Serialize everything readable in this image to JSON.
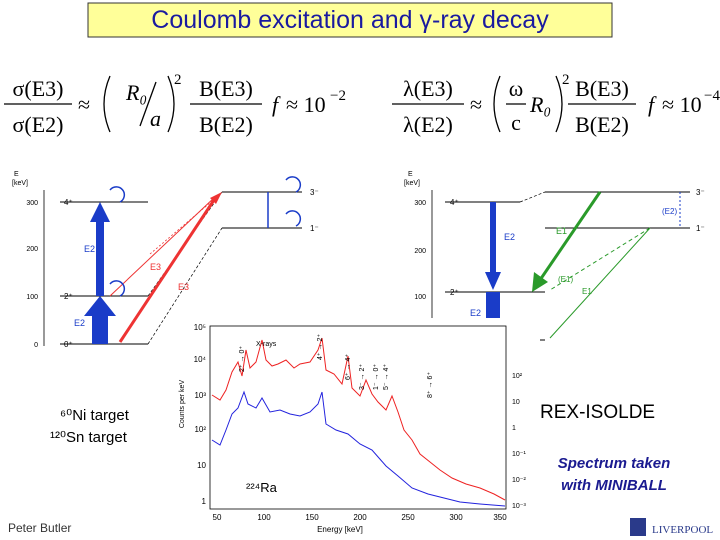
{
  "title": "Coulomb excitation and γ-ray decay",
  "formulas": {
    "left": {
      "num": "σ(E3)",
      "den": "σ(E2)",
      "approx": "≈",
      "inner_num": "R₀",
      "inner_den": "a",
      "power": "2",
      "b_num": "B(E3)",
      "b_den": "B(E2)",
      "f": "f",
      "approx_value": "≈ 10",
      "exponent": "−2"
    },
    "right": {
      "num": "λ(E3)",
      "den": "λ(E2)",
      "approx": "≈",
      "inner_num": "ω",
      "inner_den": "c",
      "inner_factor": "R₀",
      "power": "2",
      "b_num": "B(E3)",
      "b_den": "B(E2)",
      "f": "f",
      "approx_value": "≈ 10",
      "exponent": "−4"
    }
  },
  "left_diagram": {
    "axis_title": [
      "E",
      "[keV]"
    ],
    "ticks": [
      "300",
      "200",
      "100",
      "0"
    ],
    "levels": [
      "4⁺",
      "2⁺",
      "0⁺",
      "3⁻",
      "1⁻"
    ],
    "transitions": [
      "E2",
      "E2",
      "E3",
      "E3"
    ]
  },
  "right_diagram": {
    "axis_title": [
      "E",
      "[keV]"
    ],
    "ticks": [
      "300",
      "200",
      "100",
      "0"
    ],
    "levels": [
      "4⁺",
      "2⁺",
      "0⁺",
      "3⁻",
      "1⁻"
    ],
    "transitions": [
      "E2",
      "E2",
      "E1",
      "(E2)",
      "(E1)",
      "E1"
    ]
  },
  "spectrum": {
    "y_label": "Counts per keV",
    "x_label": "Energy [keV]",
    "x_ticks": [
      "50",
      "100",
      "150",
      "200",
      "250",
      "300",
      "350"
    ],
    "y_ticks": [
      "10⁵",
      "10⁴",
      "10³",
      "10²",
      "10",
      "1"
    ],
    "y2_ticks": [
      "10²",
      "10",
      "1",
      "10⁻¹",
      "10⁻²",
      "10⁻³"
    ],
    "annotations": [
      "X-rays",
      "2⁺ → 0⁺",
      "4⁺ → 2⁺",
      "6⁺ → 4⁺",
      "3⁻ → 2⁺",
      "1⁻ → 0⁺",
      "5⁻ → 4⁺",
      "8⁺ → 6⁺"
    ],
    "isotope": "²²⁴Ra"
  },
  "targets": [
    "⁶⁰Ni target",
    "¹²⁰Sn target"
  ],
  "facility": "REX-ISOLDE",
  "note": [
    "Spectrum taken",
    "with MINIBALL"
  ],
  "author": "Peter Butler",
  "logo": "LIVERPOOL"
}
